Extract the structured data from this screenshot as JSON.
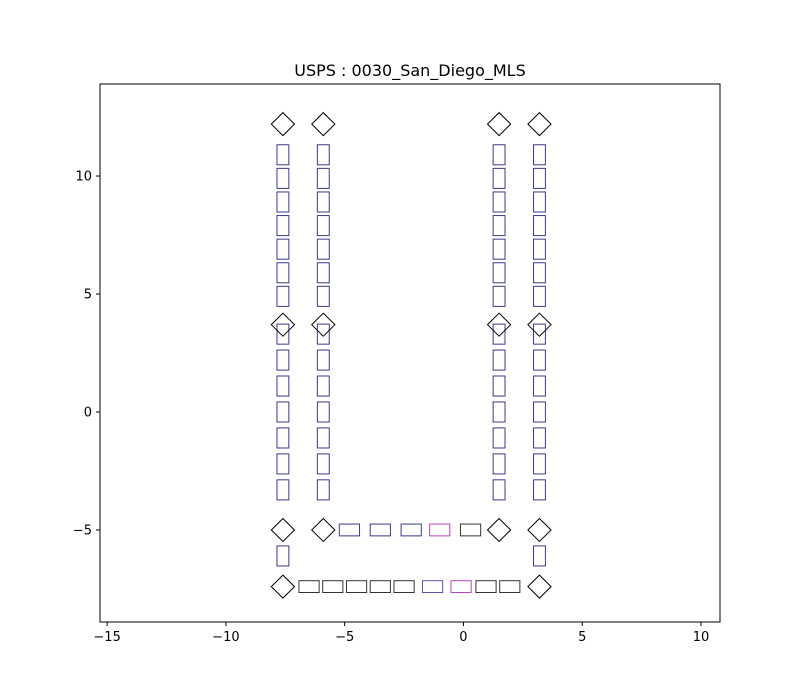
{
  "chart_data": {
    "type": "scatter",
    "title": "USPS : 0030_San_Diego_MLS",
    "xlim": [
      -15.3,
      10.8
    ],
    "ylim": [
      -8.9,
      13.9
    ],
    "x_ticks": [
      -15,
      -10,
      -5,
      0,
      5,
      10
    ],
    "y_ticks": [
      -5,
      0,
      5,
      10
    ],
    "x_tick_labels": [
      "−15",
      "−10",
      "−5",
      "0",
      "5",
      "10"
    ],
    "y_tick_labels": [
      "−5",
      "0",
      "5",
      "10"
    ],
    "grid": false,
    "colors": {
      "navy": "#3a3a8c",
      "blue": "#5555bb",
      "magenta": "#bb44bb",
      "black": "#333333"
    },
    "vertical_rects": [
      {
        "x": -7.6,
        "ys": [
          10.9,
          9.9,
          8.9,
          7.9,
          6.9,
          5.9,
          4.9,
          3.3,
          2.2,
          1.1,
          0.0,
          -1.1,
          -2.2,
          -3.3,
          -6.1
        ],
        "w": 0.5,
        "h": 0.85,
        "color": "navy"
      },
      {
        "x": -5.9,
        "ys": [
          10.9,
          9.9,
          8.9,
          7.9,
          6.9,
          5.9,
          4.9,
          3.3,
          2.2,
          1.1,
          0.0,
          -1.1,
          -2.2,
          -3.3
        ],
        "w": 0.5,
        "h": 0.85,
        "color": "navy"
      },
      {
        "x": 1.5,
        "ys": [
          10.9,
          9.9,
          8.9,
          7.9,
          6.9,
          5.9,
          4.9,
          3.3,
          2.2,
          1.1,
          0.0,
          -1.1,
          -2.2,
          -3.3
        ],
        "w": 0.5,
        "h": 0.85,
        "color": "navy"
      },
      {
        "x": 3.2,
        "ys": [
          10.9,
          9.9,
          8.9,
          7.9,
          6.9,
          5.9,
          4.9,
          3.3,
          2.2,
          1.1,
          0.0,
          -1.1,
          -2.2,
          -3.3,
          -6.1
        ],
        "w": 0.5,
        "h": 0.85,
        "color": "navy"
      }
    ],
    "horizontal_rects": [
      {
        "x": -4.8,
        "y": -5.0,
        "color": "navy"
      },
      {
        "x": -3.5,
        "y": -5.0,
        "color": "navy"
      },
      {
        "x": -2.2,
        "y": -5.0,
        "color": "navy"
      },
      {
        "x": -1.0,
        "y": -5.0,
        "color": "magenta"
      },
      {
        "x": 0.3,
        "y": -5.0,
        "color": "black"
      },
      {
        "x": -6.5,
        "y": -7.4,
        "color": "black"
      },
      {
        "x": -5.5,
        "y": -7.4,
        "color": "black"
      },
      {
        "x": -4.5,
        "y": -7.4,
        "color": "black"
      },
      {
        "x": -3.5,
        "y": -7.4,
        "color": "black"
      },
      {
        "x": -2.5,
        "y": -7.4,
        "color": "black"
      },
      {
        "x": -1.3,
        "y": -7.4,
        "color": "blue"
      },
      {
        "x": -0.1,
        "y": -7.4,
        "color": "magenta"
      },
      {
        "x": 0.95,
        "y": -7.4,
        "color": "black"
      },
      {
        "x": 1.95,
        "y": -7.4,
        "color": "black"
      }
    ],
    "horizontal_rect_size": {
      "w": 0.85,
      "h": 0.5
    },
    "diamonds": [
      {
        "x": -7.6,
        "y": 12.2
      },
      {
        "x": -5.9,
        "y": 12.2
      },
      {
        "x": 1.5,
        "y": 12.2
      },
      {
        "x": 3.2,
        "y": 12.2
      },
      {
        "x": -7.6,
        "y": 3.7
      },
      {
        "x": -5.9,
        "y": 3.7
      },
      {
        "x": 1.5,
        "y": 3.7
      },
      {
        "x": 3.2,
        "y": 3.7
      },
      {
        "x": -7.6,
        "y": -5.0
      },
      {
        "x": -5.9,
        "y": -5.0
      },
      {
        "x": 1.5,
        "y": -5.0
      },
      {
        "x": 3.2,
        "y": -5.0
      },
      {
        "x": -7.6,
        "y": -7.4
      },
      {
        "x": 3.2,
        "y": -7.4
      }
    ],
    "diamond_size": 0.65
  }
}
